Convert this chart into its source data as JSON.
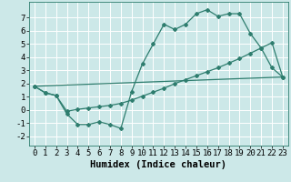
{
  "xlabel": "Humidex (Indice chaleur)",
  "background_color": "#cce8e8",
  "grid_color": "#ffffff",
  "line_color": "#2e7d6e",
  "xlim": [
    -0.5,
    23.5
  ],
  "ylim": [
    -2.7,
    8.2
  ],
  "xticks": [
    0,
    1,
    2,
    3,
    4,
    5,
    6,
    7,
    8,
    9,
    10,
    11,
    12,
    13,
    14,
    15,
    16,
    17,
    18,
    19,
    20,
    21,
    22,
    23
  ],
  "yticks": [
    -2,
    -1,
    0,
    1,
    2,
    3,
    4,
    5,
    6,
    7
  ],
  "line1_x": [
    0,
    1,
    2,
    3,
    4,
    5,
    6,
    7,
    8,
    9,
    10,
    11,
    12,
    13,
    14,
    15,
    16,
    17,
    18,
    19,
    20,
    21,
    22,
    23
  ],
  "line1_y": [
    1.8,
    1.3,
    1.1,
    -0.3,
    -1.1,
    -1.1,
    -0.9,
    -1.1,
    -1.4,
    1.4,
    3.5,
    5.0,
    6.5,
    6.1,
    6.5,
    7.3,
    7.6,
    7.1,
    7.3,
    7.3,
    5.8,
    4.7,
    3.2,
    2.5
  ],
  "line2_x": [
    0,
    1,
    2,
    3,
    4,
    5,
    6,
    7,
    8,
    9,
    10,
    11,
    12,
    13,
    14,
    15,
    16,
    17,
    18,
    19,
    20,
    21,
    22,
    23
  ],
  "line2_y": [
    1.8,
    1.3,
    1.1,
    -0.1,
    0.05,
    0.15,
    0.25,
    0.35,
    0.5,
    0.75,
    1.05,
    1.35,
    1.65,
    2.0,
    2.3,
    2.6,
    2.9,
    3.2,
    3.55,
    3.9,
    4.3,
    4.7,
    5.1,
    2.5
  ],
  "line3_x": [
    0,
    23
  ],
  "line3_y": [
    1.8,
    2.5
  ],
  "tick_fontsize": 6.5,
  "label_fontsize": 7.5
}
